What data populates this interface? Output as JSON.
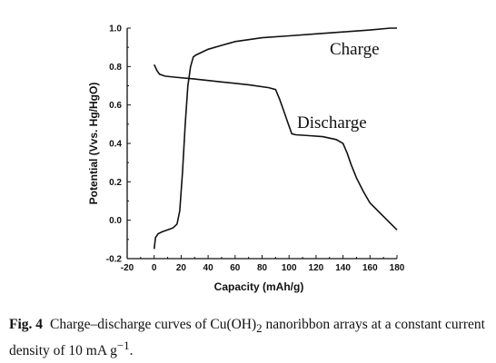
{
  "chart_data": {
    "type": "line",
    "xlabel": "Capacity (mAh/g)",
    "ylabel": "Potential (Vvs. Hg/HgO)",
    "xlim": [
      -20,
      180
    ],
    "ylim": [
      -0.2,
      1.0
    ],
    "x_ticks": [
      "-20",
      "0",
      "20",
      "40",
      "60",
      "80",
      "100",
      "120",
      "140",
      "160",
      "180"
    ],
    "y_ticks": [
      "-0.2",
      "0.0",
      "0.2",
      "0.4",
      "0.6",
      "0.8",
      "1.0"
    ],
    "series": [
      {
        "name": "Charge",
        "x": [
          0,
          1,
          3,
          6,
          10,
          14,
          17,
          19,
          21,
          23,
          25,
          27,
          29,
          31,
          34,
          40,
          50,
          60,
          80,
          100,
          120,
          140,
          160,
          175,
          180
        ],
        "y": [
          -0.15,
          -0.09,
          -0.07,
          -0.06,
          -0.05,
          -0.04,
          -0.02,
          0.05,
          0.25,
          0.5,
          0.7,
          0.8,
          0.85,
          0.86,
          0.87,
          0.89,
          0.91,
          0.93,
          0.95,
          0.96,
          0.97,
          0.98,
          0.99,
          1.0,
          1.0
        ]
      },
      {
        "name": "Discharge",
        "x": [
          0,
          2,
          4,
          8,
          15,
          30,
          50,
          70,
          85,
          90,
          93,
          96,
          99,
          102,
          105,
          115,
          125,
          135,
          140,
          143,
          146,
          150,
          155,
          160,
          170,
          180
        ],
        "y": [
          0.81,
          0.78,
          0.76,
          0.75,
          0.745,
          0.735,
          0.72,
          0.705,
          0.69,
          0.68,
          0.63,
          0.57,
          0.51,
          0.45,
          0.445,
          0.44,
          0.435,
          0.42,
          0.4,
          0.35,
          0.29,
          0.22,
          0.15,
          0.09,
          0.02,
          -0.05
        ]
      }
    ]
  },
  "caption": {
    "fig_label": "Fig. 4",
    "text_before": "Charge–discharge curves of Cu(OH)",
    "subscript": "2",
    "text_mid": " nanoribbon arrays at a constant current density of 10 mA g",
    "superscript": "−1",
    "text_end": "."
  }
}
